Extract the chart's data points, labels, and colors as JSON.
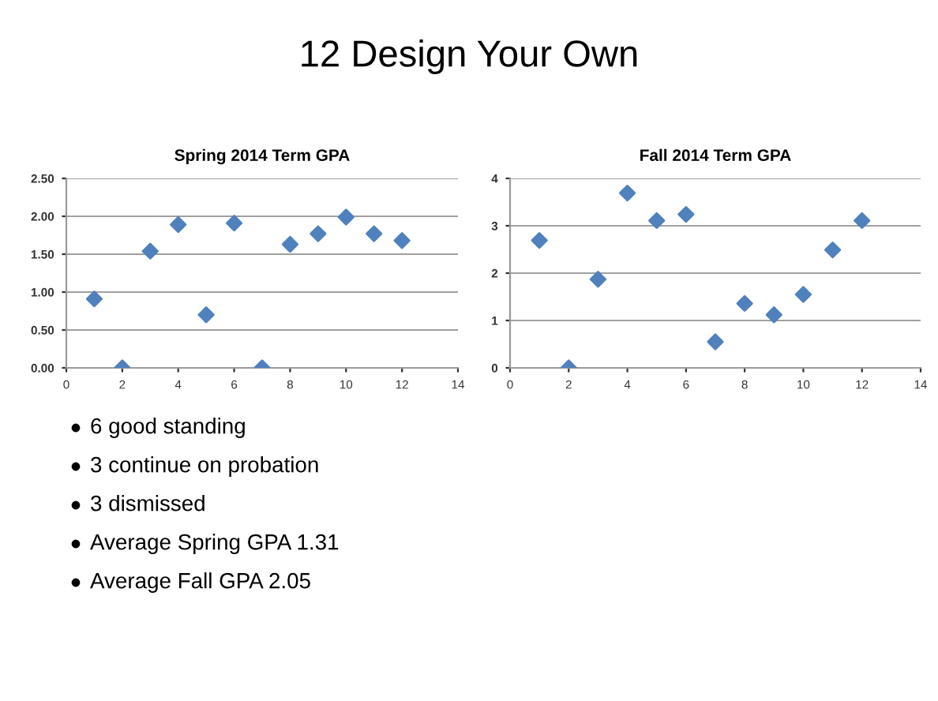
{
  "chart_data": [
    {
      "type": "other",
      "title": "12 Design Your Own",
      "annotations": [
        "6 good standing",
        "3 continue on probation",
        "3 dismissed",
        "Average Spring GPA 1.31",
        "Average Fall GPA 2.05"
      ]
    },
    {
      "type": "scatter",
      "title": "Spring 2014 Term GPA",
      "x": [
        1,
        2,
        3,
        4,
        5,
        6,
        7,
        8,
        9,
        10,
        11,
        12
      ],
      "series": [
        {
          "color": "#4f81bd",
          "values": [
            0.91,
            0.0,
            1.54,
            1.89,
            0.7,
            1.91,
            0.0,
            1.63,
            1.77,
            1.99,
            1.77,
            1.68
          ]
        }
      ],
      "xlim": [
        0,
        14
      ],
      "xticks": [
        0,
        2,
        4,
        6,
        8,
        10,
        12,
        14
      ],
      "ylim": [
        0,
        2.5
      ],
      "yticks": [
        {
          "value": 0,
          "label": "0.00"
        },
        {
          "value": 0.5,
          "label": "0.50"
        },
        {
          "value": 1,
          "label": "1.00"
        },
        {
          "value": 1.5,
          "label": "1.50"
        },
        {
          "value": 2,
          "label": "2.00"
        },
        {
          "value": 2.5,
          "label": "2.50"
        }
      ],
      "grid": "y",
      "marker": "diamond"
    },
    {
      "type": "scatter",
      "title": "Fall 2014 Term GPA",
      "x": [
        1,
        2,
        3,
        4,
        5,
        6,
        7,
        8,
        9,
        10,
        11,
        12
      ],
      "series": [
        {
          "color": "#4f81bd",
          "values": [
            2.69,
            0.0,
            1.87,
            3.69,
            3.11,
            3.24,
            0.55,
            1.36,
            1.12,
            1.55,
            2.49,
            3.11
          ]
        }
      ],
      "xlim": [
        0,
        14
      ],
      "xticks": [
        0,
        2,
        4,
        6,
        8,
        10,
        12,
        14
      ],
      "ylim": [
        0,
        4
      ],
      "yticks": [
        0,
        1,
        2,
        3,
        4
      ],
      "grid": "y",
      "marker": "diamond"
    }
  ]
}
